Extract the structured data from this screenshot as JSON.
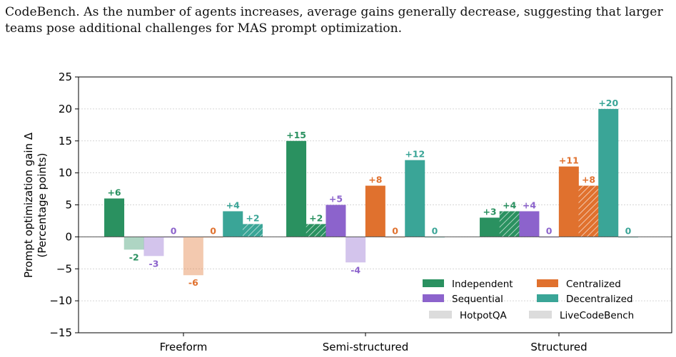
{
  "caption": "CodeBench. As the number of agents increases, average gains generally decrease, suggesting that larger teams pose additional challenges for MAS prompt optimization.",
  "chart_data": {
    "type": "bar",
    "ylabel_line1": "Prompt optimization gain Δ",
    "ylabel_line2": "(Percentage points)",
    "ylim": [
      -15,
      25
    ],
    "yticks": [
      {
        "v": 25,
        "label": "25"
      },
      {
        "v": 20,
        "label": "20"
      },
      {
        "v": 15,
        "label": "15"
      },
      {
        "v": 10,
        "label": "10"
      },
      {
        "v": 5,
        "label": "5"
      },
      {
        "v": 0,
        "label": "0"
      },
      {
        "v": -5,
        "label": "−5"
      },
      {
        "v": -10,
        "label": "−10"
      },
      {
        "v": -15,
        "label": "−15"
      }
    ],
    "grid": true,
    "categories": [
      "Freeform",
      "Semi-structured",
      "Structured"
    ],
    "series": [
      {
        "name": "Independent",
        "color": "#2a9160",
        "HotpotQA": [
          6,
          15,
          3
        ],
        "LiveCodeBench": [
          -2,
          2,
          4
        ],
        "labels_hotpot": [
          "+6",
          "+15",
          "+3"
        ],
        "labels_lcb": [
          "-2",
          "+2",
          "+4"
        ]
      },
      {
        "name": "Sequential",
        "color": "#8c63cc",
        "HotpotQA": [
          -3,
          5,
          4
        ],
        "LiveCodeBench": [
          0,
          -4,
          0
        ],
        "labels_hotpot": [
          "-3",
          "+5",
          "+4"
        ],
        "labels_lcb": [
          "0",
          "-4",
          "0"
        ]
      },
      {
        "name": "Centralized",
        "color": "#e0712e",
        "HotpotQA": [
          -6,
          8,
          11
        ],
        "LiveCodeBench": [
          0,
          0,
          8
        ],
        "labels_hotpot": [
          "-6",
          "+8",
          "+11"
        ],
        "labels_lcb": [
          "0",
          "0",
          "+8"
        ]
      },
      {
        "name": "Decentralized",
        "color": "#3aa597",
        "HotpotQA": [
          4,
          12,
          20
        ],
        "LiveCodeBench": [
          2,
          0,
          0
        ],
        "labels_hotpot": [
          "+4",
          "+12",
          "+20"
        ],
        "labels_lcb": [
          "+2",
          "0",
          "0"
        ]
      }
    ],
    "legend": {
      "placement": "lower-right",
      "entries": [
        "Independent",
        "Centralized",
        "Sequential",
        "Decentralized"
      ],
      "datasets": [
        "HotpotQA",
        "LiveCodeBench"
      ]
    },
    "neutral_color": "#dcdcdc"
  }
}
